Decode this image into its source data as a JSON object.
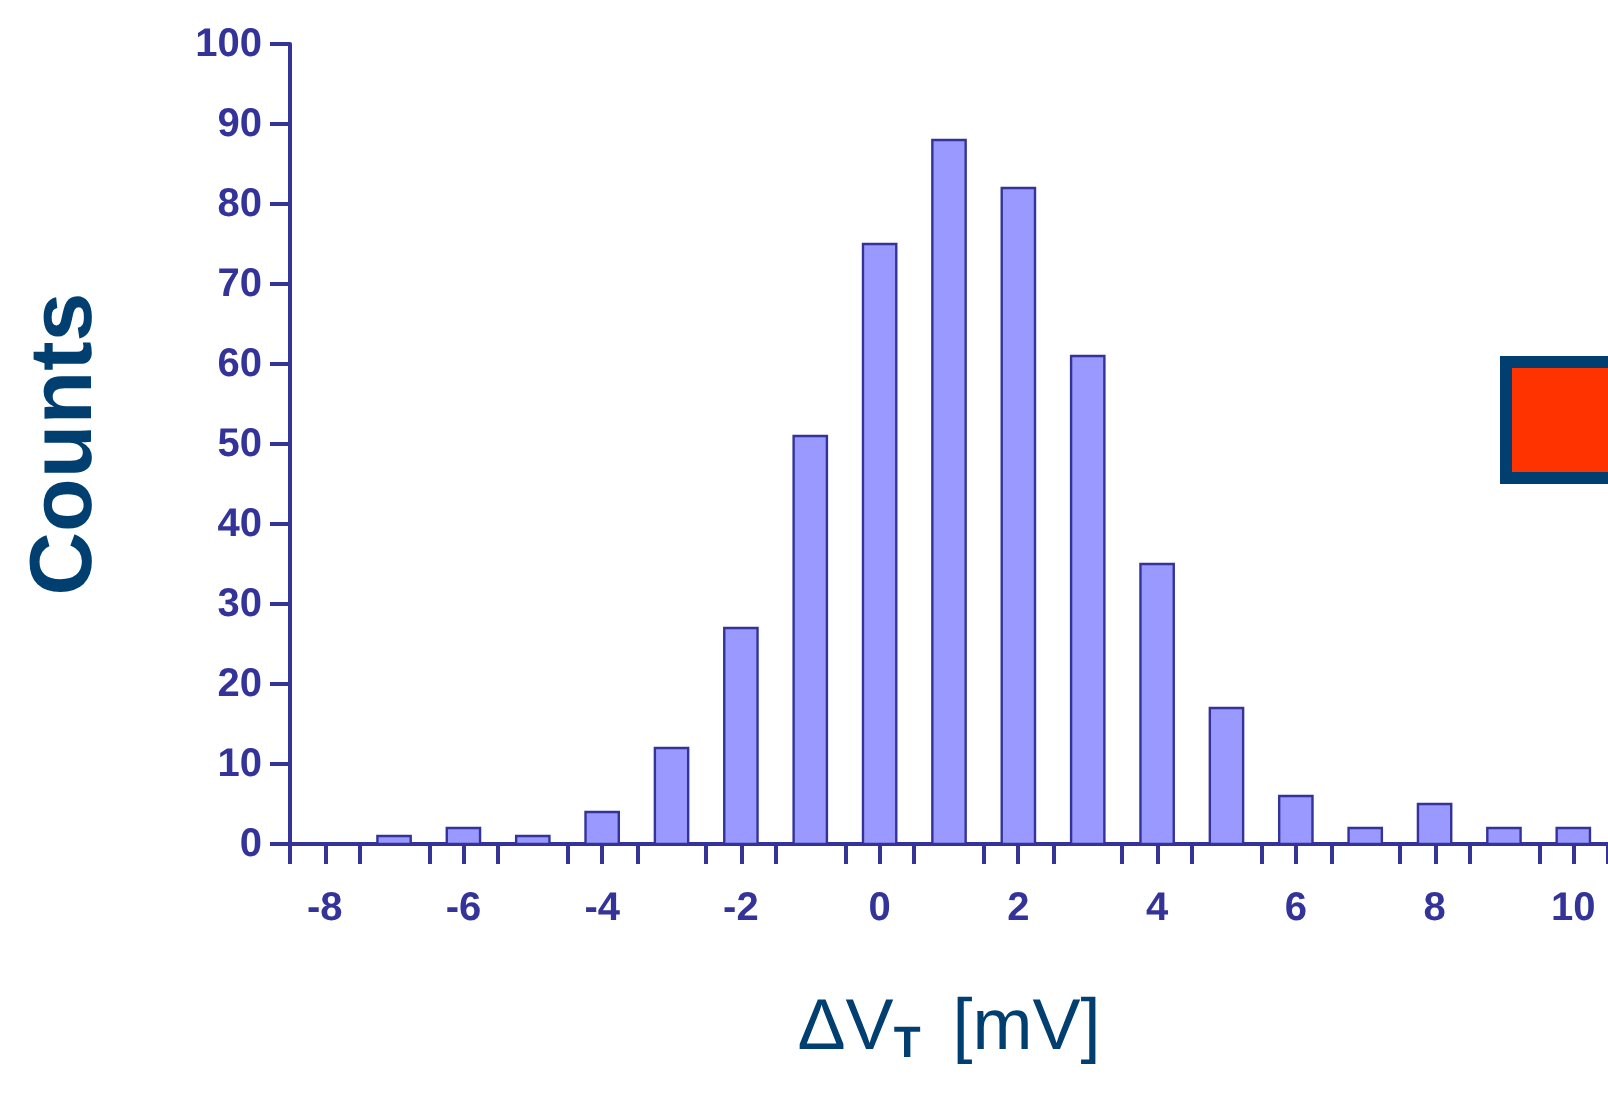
{
  "chart_data": {
    "type": "histogram",
    "xlabel": "ΔV$_{T}$ [mV]",
    "ylabel": "Counts",
    "color": "#9999ff",
    "bins": [
      -8.5,
      -7.5,
      -6.5,
      -5.5,
      -4.5,
      -3.5,
      -2.5,
      -1.5,
      -0.5,
      0.5,
      1.5,
      2.5,
      3.5,
      4.5,
      5.5,
      6.5,
      7.5,
      8.5,
      9.5,
      10.5
    ],
    "values": [
      0,
      1,
      2,
      1,
      4,
      12,
      27,
      51,
      75,
      88,
      82,
      61,
      35,
      17,
      6,
      2,
      5,
      2,
      2
    ],
    "xlim": [
      -8.5,
      10.5
    ],
    "xticks": [
      {
        "value": -8.5,
        "label": null
      },
      -8,
      {
        "value": -7.5,
        "label": null
      },
      {
        "value": -6.5,
        "label": null
      },
      -6,
      {
        "value": -5.5,
        "label": null
      },
      {
        "value": -4.5,
        "label": null
      },
      -4,
      {
        "value": -3.5,
        "label": null
      },
      {
        "value": -2.5,
        "label": null
      },
      -2,
      {
        "value": -1.5,
        "label": null
      },
      {
        "value": -0.5,
        "label": null
      },
      0,
      {
        "value": 0.5,
        "label": null
      },
      {
        "value": 1.5,
        "label": null
      },
      2,
      {
        "value": 2.5,
        "label": null
      },
      {
        "value": 3.5,
        "label": null
      },
      4,
      {
        "value": 4.5,
        "label": null
      },
      {
        "value": 5.5,
        "label": null
      },
      6,
      {
        "value": 6.5,
        "label": null
      },
      {
        "value": 7.5,
        "label": null
      },
      8,
      {
        "value": 8.5,
        "label": null
      },
      {
        "value": 9.5,
        "label": null
      },
      10,
      {
        "value": 10.5,
        "label": null
      }
    ],
    "ylim": [
      0,
      100
    ],
    "yticks": [
      0,
      10,
      20,
      30,
      40,
      50,
      60,
      70,
      80,
      90,
      100
    ],
    "grid": false
  }
}
